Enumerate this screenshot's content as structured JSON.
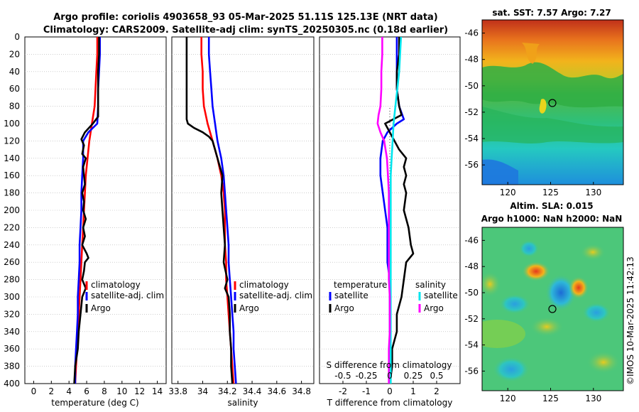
{
  "header": {
    "title_line1": "Argo profile: coriolis 4903658_93 05-Mar-2025 51.11S 125.13E (NRT data)",
    "title_line2": "Climatology: CARS2009. Satellite-adj clim: synTS_20250305.nc (0.18d earlier)"
  },
  "colors": {
    "climatology": "#ff0000",
    "satellite": "#0000ff",
    "argo": "#000000",
    "salinity_satellite": "#00e5ee",
    "salinity_argo": "#ff00ff"
  },
  "depth_axis": {
    "min": 0,
    "max": 400,
    "ticks": [
      0,
      20,
      40,
      60,
      80,
      100,
      120,
      140,
      160,
      180,
      200,
      220,
      240,
      260,
      280,
      300,
      320,
      340,
      360,
      380,
      400
    ]
  },
  "chart_data": [
    {
      "type": "line",
      "id": "temperature",
      "xlabel": "temperature (deg C)",
      "xlim": [
        -1,
        15
      ],
      "xticks": [
        0,
        2,
        4,
        6,
        8,
        10,
        12,
        14
      ],
      "y_inverted": true,
      "legend": [
        "climatology",
        "satellite-adj. clim",
        "Argo"
      ],
      "series": [
        {
          "name": "climatology",
          "color": "#ff0000",
          "depth": [
            0,
            20,
            40,
            60,
            80,
            100,
            120,
            140,
            160,
            180,
            200,
            220,
            240,
            260,
            280,
            300,
            320,
            340,
            360,
            380,
            400
          ],
          "values": [
            7.2,
            7.2,
            7.1,
            7.0,
            6.9,
            6.6,
            6.3,
            6.1,
            5.9,
            5.8,
            5.7,
            5.6,
            5.5,
            5.4,
            5.3,
            5.2,
            5.1,
            5.0,
            4.9,
            4.8,
            4.7
          ]
        },
        {
          "name": "satellite-adj. clim",
          "color": "#0000ff",
          "depth": [
            0,
            20,
            40,
            60,
            80,
            100,
            110,
            120,
            140,
            160,
            180,
            200,
            220,
            240,
            260,
            280,
            300,
            320,
            340,
            360,
            380,
            400
          ],
          "values": [
            7.5,
            7.5,
            7.4,
            7.3,
            7.3,
            7.2,
            6.2,
            5.6,
            5.6,
            5.5,
            5.4,
            5.4,
            5.3,
            5.2,
            5.2,
            5.1,
            5.0,
            5.0,
            4.9,
            4.8,
            4.7,
            4.7
          ]
        },
        {
          "name": "Argo",
          "color": "#000000",
          "depth": [
            0,
            20,
            40,
            60,
            80,
            92,
            100,
            110,
            118,
            125,
            135,
            140,
            150,
            160,
            170,
            180,
            190,
            200,
            210,
            220,
            230,
            240,
            250,
            255,
            260,
            270,
            280,
            290,
            300,
            320,
            340,
            360,
            380,
            400
          ],
          "values": [
            7.4,
            7.4,
            7.3,
            7.3,
            7.3,
            7.3,
            6.7,
            5.8,
            5.4,
            5.7,
            5.5,
            5.9,
            5.6,
            5.7,
            5.8,
            5.5,
            5.7,
            5.6,
            5.9,
            5.6,
            5.8,
            5.5,
            6.0,
            6.2,
            5.8,
            5.7,
            5.5,
            5.9,
            5.5,
            5.3,
            5.1,
            5.0,
            4.7,
            4.6
          ]
        }
      ]
    },
    {
      "type": "line",
      "id": "salinity",
      "xlabel": "salinity",
      "xlim": [
        33.75,
        34.9
      ],
      "xticks": [
        33.8,
        34,
        34.2,
        34.4,
        34.6,
        34.8
      ],
      "y_inverted": true,
      "legend": [
        "climatology",
        "satellite-adj. clim",
        "Argo"
      ],
      "series": [
        {
          "name": "climatology",
          "color": "#ff0000",
          "depth": [
            0,
            20,
            40,
            60,
            80,
            100,
            120,
            140,
            160,
            180,
            200,
            220,
            240,
            260,
            280,
            300,
            320,
            340,
            360,
            380,
            400
          ],
          "values": [
            33.99,
            33.99,
            34.0,
            34.0,
            34.01,
            34.04,
            34.08,
            34.12,
            34.15,
            34.17,
            34.18,
            34.18,
            34.18,
            34.19,
            34.19,
            34.2,
            34.21,
            34.22,
            34.23,
            34.24,
            34.25
          ]
        },
        {
          "name": "satellite-adj. clim",
          "color": "#0000ff",
          "depth": [
            0,
            20,
            40,
            60,
            80,
            100,
            120,
            140,
            160,
            180,
            200,
            220,
            240,
            260,
            280,
            300,
            320,
            340,
            360,
            380,
            400
          ],
          "values": [
            34.05,
            34.05,
            34.06,
            34.07,
            34.08,
            34.1,
            34.12,
            34.15,
            34.17,
            34.18,
            34.19,
            34.2,
            34.21,
            34.21,
            34.22,
            34.23,
            34.24,
            34.25,
            34.25,
            34.26,
            34.27
          ]
        },
        {
          "name": "Argo",
          "color": "#000000",
          "depth": [
            0,
            20,
            40,
            60,
            80,
            95,
            100,
            105,
            110,
            115,
            120,
            125,
            130,
            140,
            150,
            160,
            180,
            200,
            220,
            240,
            260,
            280,
            290,
            300,
            320,
            340,
            360,
            380,
            400
          ],
          "values": [
            33.87,
            33.87,
            33.87,
            33.87,
            33.87,
            33.87,
            33.88,
            33.93,
            34.0,
            34.05,
            34.08,
            34.09,
            34.1,
            34.12,
            34.14,
            34.16,
            34.15,
            34.16,
            34.17,
            34.18,
            34.17,
            34.2,
            34.18,
            34.21,
            34.22,
            34.22,
            34.23,
            34.23,
            34.24
          ]
        }
      ]
    },
    {
      "type": "line",
      "id": "difference",
      "xlabel": "T difference from climatology",
      "xlim": [
        -3,
        3
      ],
      "xticks": [
        -2,
        -1,
        0,
        1,
        2
      ],
      "xticklabels": [
        "-2",
        "-1",
        "0",
        "1",
        "2"
      ],
      "secondary_axis_label": "S difference from climatology",
      "secondary_xticks": [
        -0.5,
        -0.25,
        0,
        0.25,
        0.5
      ],
      "secondary_xticklabels": [
        "-0.5",
        "-0.25",
        "0",
        "0.25",
        "0.5"
      ],
      "y_inverted": true,
      "legend_temperature_title": "temperature",
      "legend_salinity_title": "salinity",
      "legend": [
        "satellite",
        "Argo",
        "satellite",
        "Argo"
      ],
      "series": [
        {
          "name": "temperature satellite",
          "color": "#0000ff",
          "depth": [
            0,
            20,
            40,
            60,
            80,
            95,
            100,
            110,
            120,
            140,
            160,
            180,
            200,
            220,
            240,
            260,
            280,
            300,
            320,
            340,
            360,
            380,
            400
          ],
          "values": [
            0.3,
            0.3,
            0.3,
            0.3,
            0.4,
            0.6,
            0.3,
            -0.1,
            -0.3,
            -0.4,
            -0.4,
            -0.3,
            -0.2,
            -0.1,
            -0.1,
            -0.1,
            0.0,
            0.0,
            0.0,
            0.0,
            0.0,
            0.0,
            0.0
          ]
        },
        {
          "name": "temperature Argo",
          "color": "#000000",
          "depth": [
            0,
            20,
            40,
            60,
            80,
            90,
            100,
            110,
            120,
            130,
            140,
            150,
            160,
            170,
            180,
            200,
            220,
            240,
            250,
            260,
            280,
            300,
            320,
            340,
            360,
            380,
            400
          ],
          "values": [
            0.4,
            0.4,
            0.3,
            0.3,
            0.4,
            0.5,
            -0.2,
            0.0,
            0.2,
            0.4,
            0.7,
            0.6,
            0.7,
            0.6,
            0.7,
            0.6,
            0.8,
            0.9,
            1.0,
            0.7,
            0.6,
            0.5,
            0.3,
            0.3,
            0.1,
            0.1,
            0.0
          ]
        },
        {
          "name": "salinity satellite",
          "color": "#00e5ee",
          "depth": [
            0,
            20,
            40,
            60,
            80,
            100,
            120,
            140,
            160,
            180,
            200,
            220,
            240,
            260,
            280,
            300,
            320,
            340,
            360,
            380,
            400
          ],
          "values": [
            0.12,
            0.11,
            0.1,
            0.08,
            0.06,
            0.04,
            0.03,
            0.02,
            0.01,
            0.01,
            0.01,
            0.01,
            0.01,
            0.01,
            0.01,
            0.01,
            0.01,
            0.01,
            0.01,
            0.01,
            0.01
          ]
        },
        {
          "name": "salinity Argo",
          "color": "#ff00ff",
          "depth": [
            0,
            20,
            40,
            60,
            80,
            90,
            100,
            110,
            120,
            140,
            160,
            180,
            200,
            220,
            240,
            260,
            280,
            300,
            320,
            340,
            360,
            380,
            400
          ],
          "values": [
            -0.08,
            -0.08,
            -0.09,
            -0.09,
            -0.1,
            -0.12,
            -0.13,
            -0.1,
            -0.06,
            -0.03,
            -0.02,
            -0.01,
            -0.01,
            -0.01,
            -0.01,
            -0.01,
            -0.01,
            0.0,
            0.0,
            0.0,
            -0.01,
            -0.01,
            -0.01
          ]
        }
      ]
    },
    {
      "type": "heatmap",
      "id": "sst_map",
      "title": "sat. SST: 7.57 Argo: 7.27",
      "xticks": [
        120,
        125,
        130
      ],
      "yticks": [
        -46,
        -48,
        -50,
        -52,
        -54,
        -56
      ],
      "xlim": [
        117,
        133.5
      ],
      "ylim": [
        -57.5,
        -45
      ],
      "marker": {
        "lon": 125.13,
        "lat": -51.11
      }
    },
    {
      "type": "heatmap",
      "id": "sla_map",
      "title_line1": "Altim. SLA: 0.015",
      "title_line2": "Argo h1000: NaN h2000: NaN",
      "xticks": [
        120,
        125,
        130
      ],
      "yticks": [
        -46,
        -48,
        -50,
        -52,
        -54,
        -56
      ],
      "xlim": [
        117,
        133.5
      ],
      "ylim": [
        -57.5,
        -45
      ],
      "marker": {
        "lon": 125.13,
        "lat": -51.11
      }
    }
  ],
  "watermark": "©IMOS 10-Mar-2025 11:42:13"
}
